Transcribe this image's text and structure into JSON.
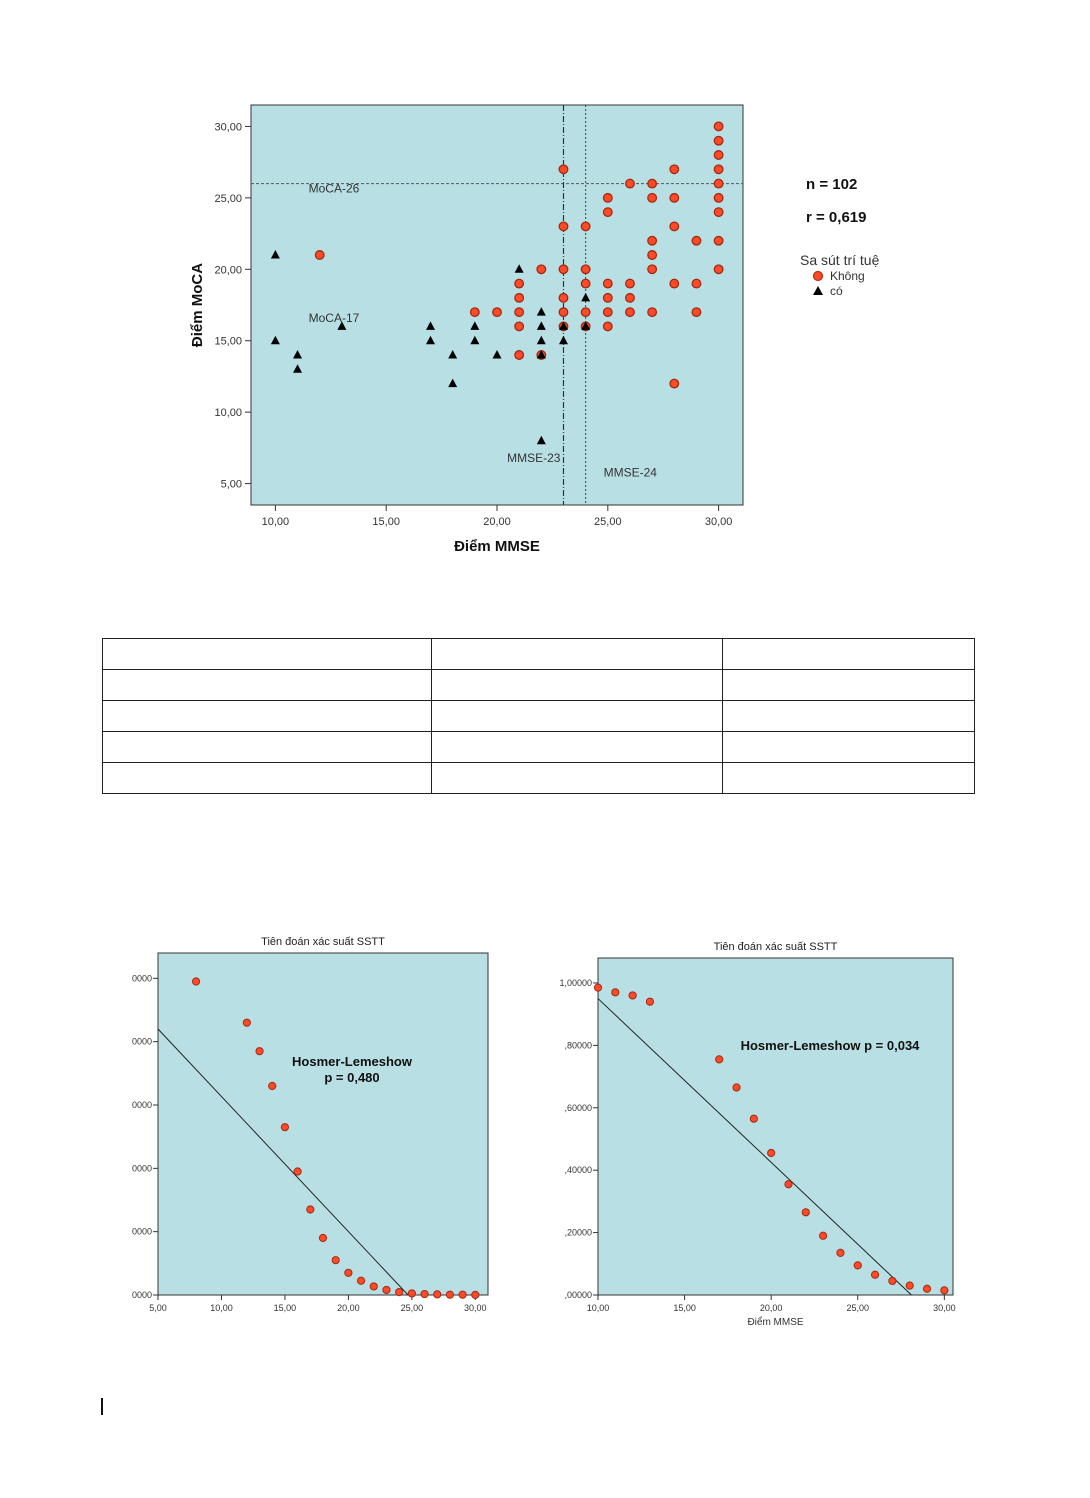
{
  "main": {
    "stats": {
      "n": "n = 102",
      "r": "r = 0,619"
    },
    "legend": {
      "title": "Sa sút trí tuệ",
      "no_label": "Không",
      "yes_label": "có"
    }
  },
  "chart_data": [
    {
      "type": "scatter",
      "xlabel": "Điểm MMSE",
      "ylabel": "Điểm MoCA",
      "xlim": [
        8.9,
        31.1
      ],
      "ylim": [
        3.5,
        31.5
      ],
      "xticks": [
        10,
        15,
        20,
        25,
        30
      ],
      "yticks": [
        5,
        10,
        15,
        20,
        25,
        30
      ],
      "xtick_labels": [
        "10,00",
        "15,00",
        "20,00",
        "25,00",
        "30,00"
      ],
      "ytick_labels": [
        "5,00",
        "10,00",
        "15,00",
        "20,00",
        "25,00",
        "30,00"
      ],
      "grid": false,
      "legend_position": "right",
      "reference_lines": [
        {
          "orientation": "horizontal",
          "value": 26,
          "label": "MoCA-26"
        },
        {
          "orientation": "horizontal",
          "value": 17,
          "label": "MoCA-17"
        },
        {
          "orientation": "vertical",
          "value": 23,
          "label": "MMSE-23"
        },
        {
          "orientation": "vertical",
          "value": 24,
          "label": "MMSE-24"
        }
      ],
      "series": [
        {
          "name": "Không",
          "marker": "circle",
          "color": "#ff4a2a",
          "points": [
            [
              12,
              21
            ],
            [
              19,
              17
            ],
            [
              20,
              17
            ],
            [
              21,
              14
            ],
            [
              21,
              16
            ],
            [
              21,
              17
            ],
            [
              21,
              18
            ],
            [
              21,
              19
            ],
            [
              22,
              14
            ],
            [
              22,
              20
            ],
            [
              23,
              16
            ],
            [
              23,
              17
            ],
            [
              23,
              18
            ],
            [
              23,
              20
            ],
            [
              23,
              23
            ],
            [
              23,
              27
            ],
            [
              24,
              16
            ],
            [
              24,
              17
            ],
            [
              24,
              19
            ],
            [
              24,
              20
            ],
            [
              24,
              23
            ],
            [
              25,
              16
            ],
            [
              25,
              17
            ],
            [
              25,
              18
            ],
            [
              25,
              19
            ],
            [
              25,
              24
            ],
            [
              25,
              25
            ],
            [
              26,
              17
            ],
            [
              26,
              18
            ],
            [
              26,
              19
            ],
            [
              26,
              26
            ],
            [
              27,
              17
            ],
            [
              27,
              20
            ],
            [
              27,
              21
            ],
            [
              27,
              22
            ],
            [
              27,
              25
            ],
            [
              27,
              26
            ],
            [
              28,
              12
            ],
            [
              28,
              19
            ],
            [
              28,
              23
            ],
            [
              28,
              25
            ],
            [
              28,
              27
            ],
            [
              29,
              17
            ],
            [
              29,
              19
            ],
            [
              29,
              22
            ],
            [
              30,
              20
            ],
            [
              30,
              22
            ],
            [
              30,
              24
            ],
            [
              30,
              25
            ],
            [
              30,
              26
            ],
            [
              30,
              27
            ],
            [
              30,
              28
            ],
            [
              30,
              29
            ],
            [
              30,
              30
            ]
          ]
        },
        {
          "name": "có",
          "marker": "triangle",
          "color": "#000000",
          "points": [
            [
              10,
              15
            ],
            [
              10,
              21
            ],
            [
              11,
              13
            ],
            [
              11,
              14
            ],
            [
              13,
              16
            ],
            [
              17,
              15
            ],
            [
              17,
              16
            ],
            [
              18,
              12
            ],
            [
              18,
              14
            ],
            [
              19,
              15
            ],
            [
              19,
              16
            ],
            [
              20,
              14
            ],
            [
              21,
              20
            ],
            [
              22,
              8
            ],
            [
              22,
              14
            ],
            [
              22,
              15
            ],
            [
              22,
              16
            ],
            [
              22,
              17
            ],
            [
              23,
              15
            ],
            [
              23,
              16
            ],
            [
              24,
              16
            ],
            [
              24,
              18
            ]
          ]
        }
      ]
    },
    {
      "type": "scatter",
      "title": "Tiên đoán xác suất SSTT",
      "annotation": [
        "Hosmer-Lemeshow",
        "p = 0,480"
      ],
      "xlim": [
        5,
        31
      ],
      "ylim": [
        0,
        1.08
      ],
      "xticks": [
        5,
        10,
        15,
        20,
        25,
        30
      ],
      "xtick_labels": [
        "5,00",
        "10,00",
        "15,00",
        "20,00",
        "25,00",
        "30,00"
      ],
      "yticks": [
        0,
        0.2,
        0.4,
        0.6,
        0.8,
        1.0
      ],
      "ytick_labels": [
        "0000",
        "0000",
        "0000",
        "0000",
        "0000",
        "0000"
      ],
      "points": [
        [
          8,
          0.99
        ],
        [
          12,
          0.86
        ],
        [
          13,
          0.77
        ],
        [
          14,
          0.66
        ],
        [
          15,
          0.53
        ],
        [
          16,
          0.39
        ],
        [
          17,
          0.27
        ],
        [
          18,
          0.18
        ],
        [
          19,
          0.11
        ],
        [
          20,
          0.07
        ],
        [
          21,
          0.045
        ],
        [
          22,
          0.027
        ],
        [
          23,
          0.016
        ],
        [
          24,
          0.009
        ],
        [
          25,
          0.005
        ],
        [
          26,
          0.003
        ],
        [
          27,
          0.002
        ],
        [
          28,
          0.001
        ],
        [
          29,
          0.001
        ],
        [
          30,
          0.0005
        ]
      ],
      "line": [
        [
          5,
          0.84
        ],
        [
          24.7,
          0
        ]
      ]
    },
    {
      "type": "scatter",
      "title": "Tiên đoán xác suất SSTT",
      "annotation": [
        "Hosmer-Lemeshow p = 0,034"
      ],
      "xlabel": "Điểm MMSE",
      "xlim": [
        10,
        30.5
      ],
      "ylim": [
        0,
        1.08
      ],
      "xticks": [
        10,
        15,
        20,
        25,
        30
      ],
      "xtick_labels": [
        "10,00",
        "15,00",
        "20,00",
        "25,00",
        "30,00"
      ],
      "yticks": [
        0,
        0.2,
        0.4,
        0.6,
        0.8,
        1.0
      ],
      "ytick_labels": [
        ",00000",
        ",20000",
        ",40000",
        ",60000",
        ",80000",
        "1,00000"
      ],
      "points": [
        [
          10,
          0.985
        ],
        [
          11,
          0.97
        ],
        [
          12,
          0.96
        ],
        [
          13,
          0.94
        ],
        [
          17,
          0.755
        ],
        [
          18,
          0.665
        ],
        [
          19,
          0.565
        ],
        [
          20,
          0.455
        ],
        [
          21,
          0.355
        ],
        [
          22,
          0.265
        ],
        [
          23,
          0.19
        ],
        [
          24,
          0.135
        ],
        [
          25,
          0.095
        ],
        [
          26,
          0.065
        ],
        [
          27,
          0.045
        ],
        [
          28,
          0.03
        ],
        [
          29,
          0.02
        ],
        [
          30,
          0.015
        ]
      ],
      "line": [
        [
          10,
          0.95
        ],
        [
          28.1,
          0
        ]
      ]
    }
  ]
}
